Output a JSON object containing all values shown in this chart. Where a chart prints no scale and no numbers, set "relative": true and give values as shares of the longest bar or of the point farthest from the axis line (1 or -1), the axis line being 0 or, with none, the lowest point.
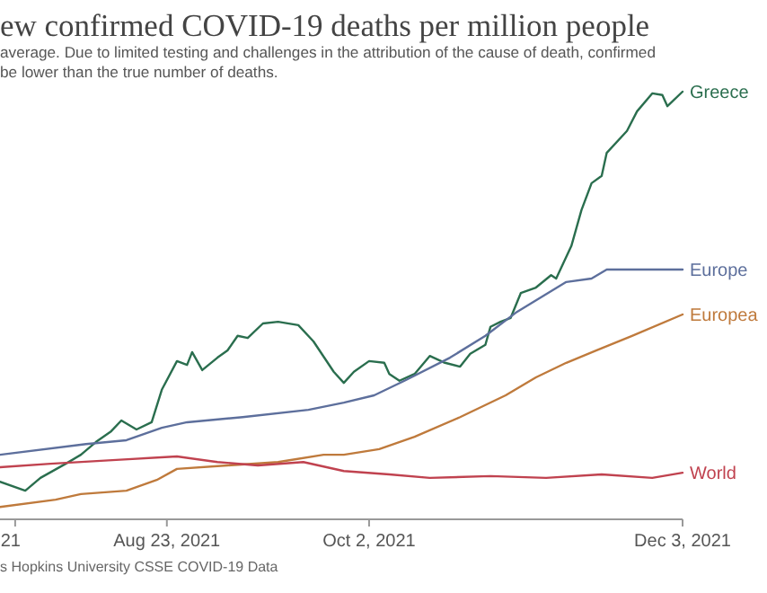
{
  "chart_data": {
    "type": "line",
    "title": "ew confirmed COVID-19 deaths per million people",
    "subtitle": "average. Due to limited testing and challenges in the attribution of the cause of death, confirmed\nbe lower than the true number of deaths.",
    "annotations": [
      "s Hopkins University CSSE COVID-19 Data"
    ],
    "relative": true,
    "xlim": [
      "2021-07-21",
      "2021-12-03"
    ],
    "xticks": [
      {
        "value": "2021-07-24",
        "label": "21"
      },
      {
        "value": "2021-08-23",
        "label": "Aug 23, 2021"
      },
      {
        "value": "2021-10-02",
        "label": "Oct 2, 2021"
      },
      {
        "value": "2021-12-03",
        "label": "Dec 3, 2021"
      }
    ],
    "series": [
      {
        "name": "Greece",
        "color": "#2a6e4e",
        "x": [
          "2021-07-21",
          "2021-07-26",
          "2021-07-29",
          "2021-08-03",
          "2021-08-06",
          "2021-08-09",
          "2021-08-12",
          "2021-08-14",
          "2021-08-17",
          "2021-08-20",
          "2021-08-22",
          "2021-08-25",
          "2021-08-27",
          "2021-08-28",
          "2021-08-30",
          "2021-09-02",
          "2021-09-04",
          "2021-09-06",
          "2021-09-08",
          "2021-09-11",
          "2021-09-14",
          "2021-09-18",
          "2021-09-21",
          "2021-09-25",
          "2021-09-27",
          "2021-09-29",
          "2021-10-02",
          "2021-10-05",
          "2021-10-06",
          "2021-10-08",
          "2021-10-11",
          "2021-10-14",
          "2021-10-17",
          "2021-10-20",
          "2021-10-22",
          "2021-10-25",
          "2021-10-26",
          "2021-10-28",
          "2021-10-30",
          "2021-11-01",
          "2021-11-04",
          "2021-11-07",
          "2021-11-08",
          "2021-11-11",
          "2021-11-13",
          "2021-11-15",
          "2021-11-17",
          "2021-11-18",
          "2021-11-22",
          "2021-11-24",
          "2021-11-27",
          "2021-11-29",
          "2021-11-30",
          "2021-12-03"
        ],
        "values": [
          0.088,
          0.067,
          0.097,
          0.13,
          0.151,
          0.181,
          0.206,
          0.231,
          0.21,
          0.227,
          0.303,
          0.37,
          0.361,
          0.391,
          0.349,
          0.378,
          0.395,
          0.429,
          0.424,
          0.458,
          0.462,
          0.454,
          0.416,
          0.345,
          0.319,
          0.345,
          0.37,
          0.366,
          0.34,
          0.324,
          0.34,
          0.382,
          0.366,
          0.357,
          0.387,
          0.408,
          0.45,
          0.462,
          0.471,
          0.529,
          0.542,
          0.571,
          0.563,
          0.639,
          0.723,
          0.786,
          0.803,
          0.857,
          0.908,
          0.954,
          0.996,
          0.992,
          0.966,
          1.0
        ]
      },
      {
        "name": "Europe",
        "color": "#5d6f9c",
        "x": [
          "2021-07-21",
          "2021-08-07",
          "2021-08-15",
          "2021-08-22",
          "2021-08-27",
          "2021-09-07",
          "2021-09-20",
          "2021-09-27",
          "2021-10-03",
          "2021-10-09",
          "2021-10-18",
          "2021-10-25",
          "2021-10-31",
          "2021-11-10",
          "2021-11-15",
          "2021-11-18",
          "2021-12-03"
        ],
        "values": [
          0.151,
          0.176,
          0.185,
          0.214,
          0.227,
          0.239,
          0.256,
          0.273,
          0.29,
          0.324,
          0.378,
          0.429,
          0.483,
          0.555,
          0.563,
          0.584,
          0.584
        ]
      },
      {
        "name": "Europea",
        "color": "#bf7a3c",
        "x": [
          "2021-07-21",
          "2021-08-01",
          "2021-08-06",
          "2021-08-15",
          "2021-08-21",
          "2021-08-25",
          "2021-09-04",
          "2021-09-14",
          "2021-09-23",
          "2021-09-27",
          "2021-10-04",
          "2021-10-11",
          "2021-10-20",
          "2021-10-29",
          "2021-11-04",
          "2021-11-10",
          "2021-11-16",
          "2021-11-23",
          "2021-12-03"
        ],
        "values": [
          0.029,
          0.046,
          0.059,
          0.067,
          0.092,
          0.118,
          0.126,
          0.134,
          0.151,
          0.151,
          0.164,
          0.193,
          0.239,
          0.29,
          0.332,
          0.366,
          0.395,
          0.429,
          0.479
        ]
      },
      {
        "name": "World",
        "color": "#c0424f",
        "x": [
          "2021-07-21",
          "2021-07-31",
          "2021-08-13",
          "2021-08-25",
          "2021-09-02",
          "2021-09-10",
          "2021-09-19",
          "2021-09-27",
          "2021-10-06",
          "2021-10-14",
          "2021-10-26",
          "2021-11-06",
          "2021-11-17",
          "2021-11-27",
          "2021-12-03"
        ],
        "values": [
          0.122,
          0.13,
          0.139,
          0.147,
          0.134,
          0.126,
          0.134,
          0.113,
          0.105,
          0.097,
          0.101,
          0.097,
          0.105,
          0.097,
          0.109
        ]
      }
    ]
  }
}
